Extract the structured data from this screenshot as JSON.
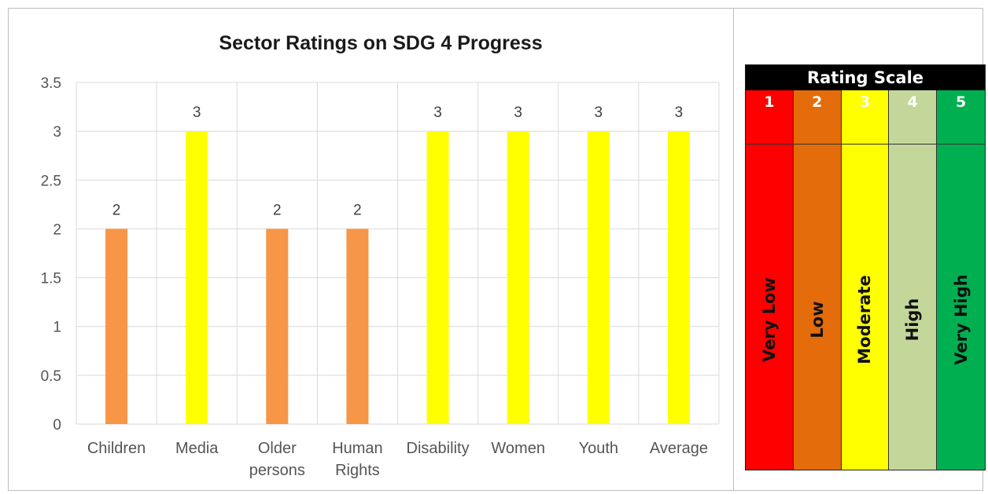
{
  "chart_data": {
    "type": "bar",
    "title": "Sector Ratings on SDG 4 Progress",
    "categories": [
      "Children",
      "Media",
      "Older persons",
      "Human Rights",
      "Disability",
      "Women",
      "Youth",
      "Average"
    ],
    "category_lines": [
      [
        "Children"
      ],
      [
        "Media"
      ],
      [
        "Older",
        "persons"
      ],
      [
        "Human",
        "Rights"
      ],
      [
        "Disability"
      ],
      [
        "Women"
      ],
      [
        "Youth"
      ],
      [
        "Average"
      ]
    ],
    "values": [
      2,
      3,
      2,
      2,
      3,
      3,
      3,
      3
    ],
    "bar_colors": [
      "#f79646",
      "#ffff00",
      "#f79646",
      "#f79646",
      "#ffff00",
      "#ffff00",
      "#ffff00",
      "#ffff00"
    ],
    "ylim": [
      0,
      3.5
    ],
    "yticks": [
      0,
      0.5,
      1,
      1.5,
      2,
      2.5,
      3,
      3.5
    ],
    "ytick_labels": [
      "0",
      "0.5",
      "1",
      "1.5",
      "2",
      "2.5",
      "3",
      "3.5"
    ],
    "xlabel": "",
    "ylabel": "",
    "data_labels": true,
    "grid": true,
    "legend": "none"
  },
  "rating_scale": {
    "title": "Rating Scale",
    "levels": [
      {
        "number": "1",
        "label": "Very Low",
        "color": "#ff0000"
      },
      {
        "number": "2",
        "label": "Low",
        "color": "#e46c0a"
      },
      {
        "number": "3",
        "label": "Moderate",
        "color": "#ffff00"
      },
      {
        "number": "4",
        "label": "High",
        "color": "#c4d79b"
      },
      {
        "number": "5",
        "label": "Very High",
        "color": "#00b050"
      }
    ]
  }
}
